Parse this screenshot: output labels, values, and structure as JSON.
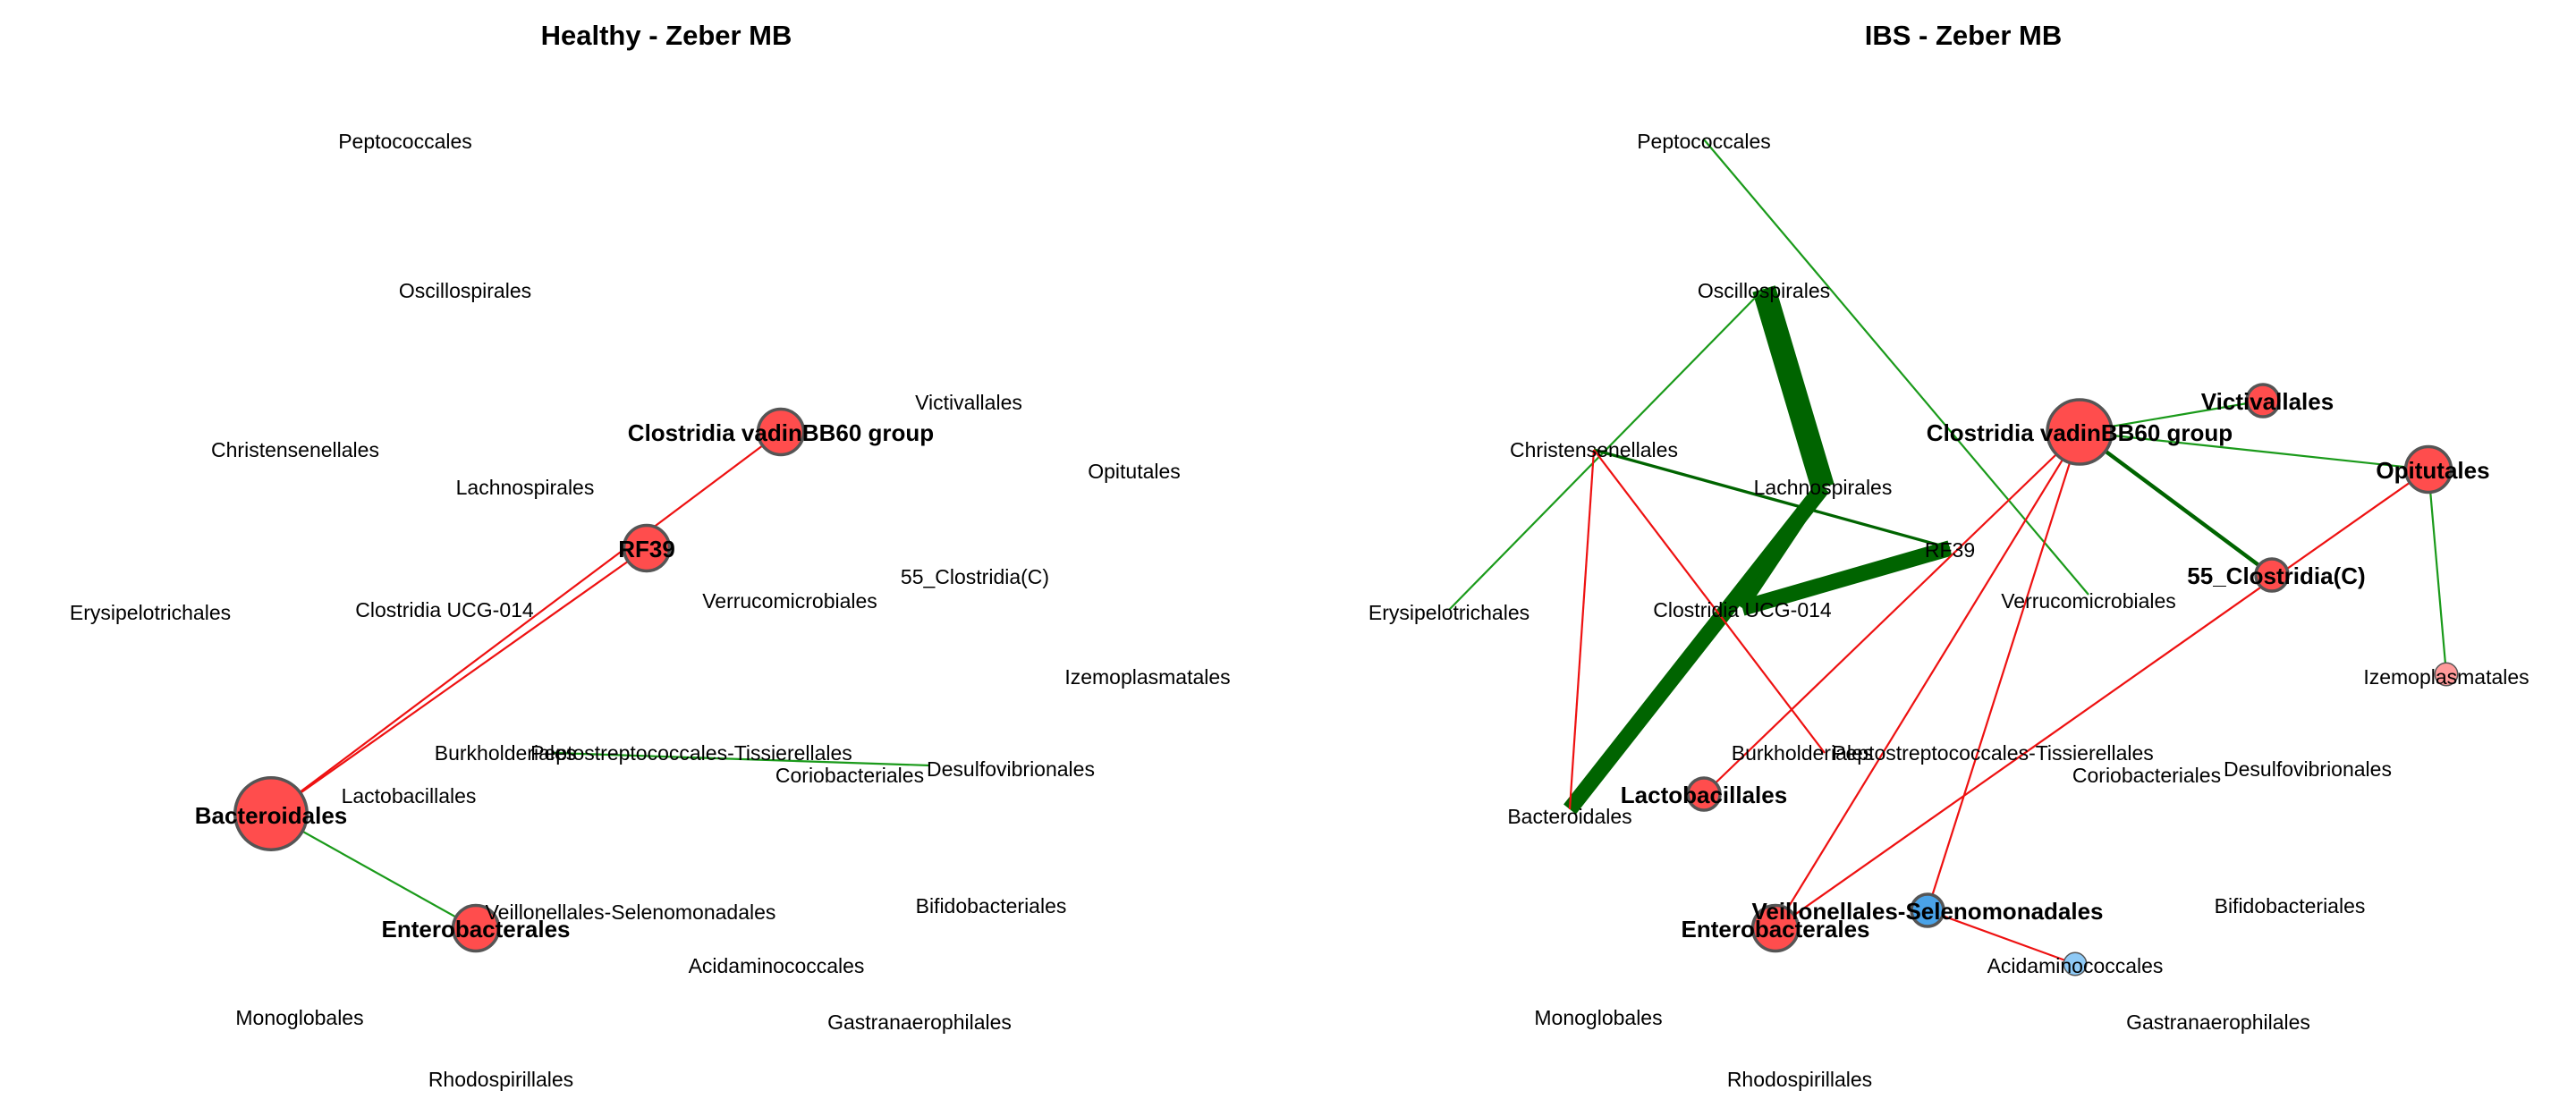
{
  "colors": {
    "positive_edge": "#1a9a1a",
    "strong_positive_edge": "#006400",
    "negative_edge": "#ee1111",
    "node_red": "#ff4d4d",
    "node_pink": "#ff9a9a",
    "node_blue": "#4aa3e8",
    "node_light_blue": "#8ec9f5",
    "node_stroke": "#555555"
  },
  "panels": [
    {
      "title": "Healthy - Zeber MB",
      "nodes": [
        {
          "label": "Peptococcales"
        },
        {
          "label": "Oscillospirales"
        },
        {
          "label": "Christensenellales"
        },
        {
          "label": "Lachnospirales"
        },
        {
          "label": "Clostridia vadinBB60 group",
          "bold": true,
          "size": 2,
          "color": "red"
        },
        {
          "label": "Victivallales"
        },
        {
          "label": "Opitutales"
        },
        {
          "label": "RF39",
          "bold": true,
          "size": 2,
          "color": "red"
        },
        {
          "label": "Erysipelotrichales"
        },
        {
          "label": "Clostridia UCG-014"
        },
        {
          "label": "Verrucomicrobiales"
        },
        {
          "label": "55_Clostridia(C)"
        },
        {
          "label": "Izemoplasmatales"
        },
        {
          "label": "Burkholderiales",
          "bold": false,
          "size": 0
        },
        {
          "label": "Peptostreptococcales-Tissierellales"
        },
        {
          "label": "Coriobacteriales"
        },
        {
          "label": "Desulfovibrionales"
        },
        {
          "label": "Lactobacillales"
        },
        {
          "label": "Bacteroidales",
          "bold": true,
          "size": 5,
          "color": "red"
        },
        {
          "label": "Bifidobacteriales"
        },
        {
          "label": "Veillonellales-Selenomonadales"
        },
        {
          "label": "Enterobacterales",
          "bold": true,
          "size": 2,
          "color": "red"
        },
        {
          "label": "Acidaminococcales"
        },
        {
          "label": "Monoglobales"
        },
        {
          "label": "Gastranaerophilales"
        },
        {
          "label": "Rhodospirillales"
        }
      ],
      "edges": [
        {
          "from": "Bacteroidales",
          "to": "Clostridia vadinBB60 group",
          "sign": "negative",
          "weight": 1
        },
        {
          "from": "Bacteroidales",
          "to": "RF39",
          "sign": "negative",
          "weight": 1
        },
        {
          "from": "Bacteroidales",
          "to": "Enterobacterales",
          "sign": "positive",
          "weight": 1
        },
        {
          "from": "Peptostreptococcales-Tissierellales",
          "to": "Desulfovibrionales",
          "sign": "positive",
          "weight": 1
        }
      ]
    },
    {
      "title": "IBS - Zeber MB",
      "nodes": [
        {
          "label": "Peptococcales"
        },
        {
          "label": "Oscillospirales"
        },
        {
          "label": "Christensenellales"
        },
        {
          "label": "Lachnospirales"
        },
        {
          "label": "Clostridia vadinBB60 group",
          "bold": true,
          "size": 4,
          "color": "red"
        },
        {
          "label": "Victivallales",
          "bold": true,
          "size": 1,
          "color": "red"
        },
        {
          "label": "Opitutales",
          "bold": true,
          "size": 2,
          "color": "red"
        },
        {
          "label": "RF39"
        },
        {
          "label": "Erysipelotrichales"
        },
        {
          "label": "Clostridia UCG-014"
        },
        {
          "label": "Verrucomicrobiales"
        },
        {
          "label": "55_Clostridia(C)",
          "bold": true,
          "size": 1,
          "color": "red"
        },
        {
          "label": "Izemoplasmatales",
          "size": 0.5,
          "color": "pink"
        },
        {
          "label": "Burkholderiales"
        },
        {
          "label": "Peptostreptococcales-Tissierellales"
        },
        {
          "label": "Coriobacteriales"
        },
        {
          "label": "Desulfovibrionales"
        },
        {
          "label": "Lactobacillales",
          "bold": true,
          "size": 1,
          "color": "red"
        },
        {
          "label": "Bacteroidales"
        },
        {
          "label": "Bifidobacteriales"
        },
        {
          "label": "Veillonellales-Selenomonadales",
          "bold": true,
          "size": 1,
          "color": "blue"
        },
        {
          "label": "Enterobacterales",
          "bold": true,
          "size": 2,
          "color": "red"
        },
        {
          "label": "Acidaminococcales",
          "size": 0.5,
          "color": "light_blue"
        },
        {
          "label": "Monoglobales"
        },
        {
          "label": "Gastranaerophilales"
        },
        {
          "label": "Rhodospirillales"
        }
      ],
      "edges": [
        {
          "from": "Peptococcales",
          "to": "Verrucomicrobiales",
          "sign": "positive",
          "weight": 1
        },
        {
          "from": "Oscillospirales",
          "to": "Lachnospirales",
          "sign": "positive_strong",
          "weight": 12
        },
        {
          "from": "Oscillospirales",
          "to": "Erysipelotrichales",
          "sign": "positive",
          "weight": 1
        },
        {
          "from": "Lachnospirales",
          "to": "Bacteroidales",
          "sign": "positive_strong",
          "weight": 8
        },
        {
          "from": "Lachnospirales",
          "to": "Clostridia UCG-014",
          "sign": "positive_strong",
          "weight": 5
        },
        {
          "from": "Clostridia UCG-014",
          "to": "RF39",
          "sign": "positive_strong",
          "weight": 8
        },
        {
          "from": "Christensenellales",
          "to": "RF39",
          "sign": "positive_strong",
          "weight": 1.5
        },
        {
          "from": "Christensenellales",
          "to": "Bacteroidales",
          "sign": "negative",
          "weight": 1
        },
        {
          "from": "Christensenellales",
          "to": "Peptostreptococcales-Tissierellales",
          "sign": "negative",
          "weight": 1
        },
        {
          "from": "Clostridia vadinBB60 group",
          "to": "Victivallales",
          "sign": "positive",
          "weight": 1
        },
        {
          "from": "Clostridia vadinBB60 group",
          "to": "Opitutales",
          "sign": "positive",
          "weight": 1
        },
        {
          "from": "Clostridia vadinBB60 group",
          "to": "55_Clostridia(C)",
          "sign": "positive_strong",
          "weight": 2
        },
        {
          "from": "Clostridia vadinBB60 group",
          "to": "Lactobacillales",
          "sign": "negative",
          "weight": 1
        },
        {
          "from": "Clostridia vadinBB60 group",
          "to": "Enterobacterales",
          "sign": "negative",
          "weight": 1
        },
        {
          "from": "Clostridia vadinBB60 group",
          "to": "Veillonellales-Selenomonadales",
          "sign": "negative",
          "weight": 1
        },
        {
          "from": "Opitutales",
          "to": "Izemoplasmatales",
          "sign": "positive",
          "weight": 1
        },
        {
          "from": "Opitutales",
          "to": "Enterobacterales",
          "sign": "negative",
          "weight": 1
        },
        {
          "from": "Veillonellales-Selenomonadales",
          "to": "Acidaminococcales",
          "sign": "negative",
          "weight": 1
        }
      ]
    }
  ]
}
